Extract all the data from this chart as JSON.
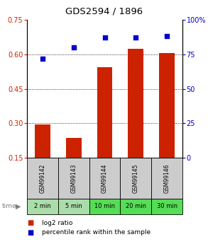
{
  "title": "GDS2594 / 1896",
  "categories": [
    "GSM99142",
    "GSM99143",
    "GSM99144",
    "GSM99145",
    "GSM99146"
  ],
  "time_labels": [
    "2 min",
    "5 min",
    "10 min",
    "20 min",
    "30 min"
  ],
  "log2_ratio": [
    0.295,
    0.235,
    0.545,
    0.625,
    0.605
  ],
  "percentile_rank": [
    72,
    80,
    87,
    87,
    88
  ],
  "ylim_left": [
    0.15,
    0.75
  ],
  "ylim_right": [
    0,
    100
  ],
  "yticks_left": [
    0.15,
    0.3,
    0.45,
    0.6,
    0.75
  ],
  "ytick_labels_left": [
    "0.15",
    "0.30",
    "0.45",
    "0.60",
    "0.75"
  ],
  "yticks_right": [
    0,
    25,
    50,
    75,
    100
  ],
  "ytick_labels_right": [
    "0",
    "25",
    "50",
    "75",
    "100%"
  ],
  "bar_color": "#cc2200",
  "scatter_color": "#0000cc",
  "label_area_color": "#cccccc",
  "time_area_color_light": "#aaddaa",
  "time_area_color_bright": "#55dd55",
  "legend_bar_label": "log2 ratio",
  "legend_scatter_label": "percentile rank within the sample",
  "title_fontsize": 9.5,
  "tick_fontsize": 7,
  "legend_fontsize": 6.5,
  "gsm_fontsize": 5.5,
  "time_fontsize": 6.0
}
